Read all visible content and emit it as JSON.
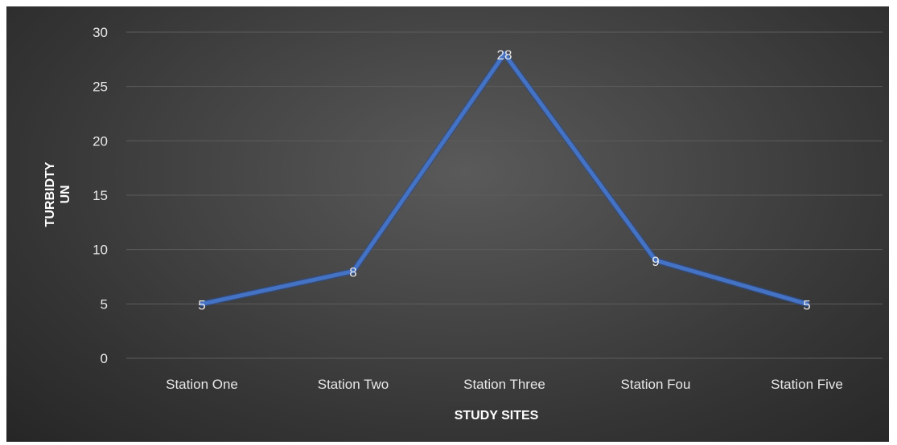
{
  "chart_data": {
    "type": "line",
    "categories": [
      "Station One",
      "Station Two",
      "Station Three",
      "Station Fou",
      "Station Five"
    ],
    "series": [
      {
        "values": [
          5,
          8,
          28,
          9,
          5
        ]
      }
    ],
    "data_labels": [
      "5",
      "8",
      "28",
      "9",
      "5"
    ],
    "xlabel": "STUDY SITES",
    "ylabel_lines": [
      "TURBIDTY",
      "UN"
    ],
    "ylim": [
      0,
      30
    ],
    "yticks": [
      0,
      5,
      10,
      15,
      20,
      25,
      30
    ],
    "ytick_labels": [
      "0",
      "5",
      "10",
      "15",
      "20",
      "25",
      "30"
    ],
    "grid": true,
    "line_color": "#4472C4",
    "background": "#3f3f3f"
  }
}
